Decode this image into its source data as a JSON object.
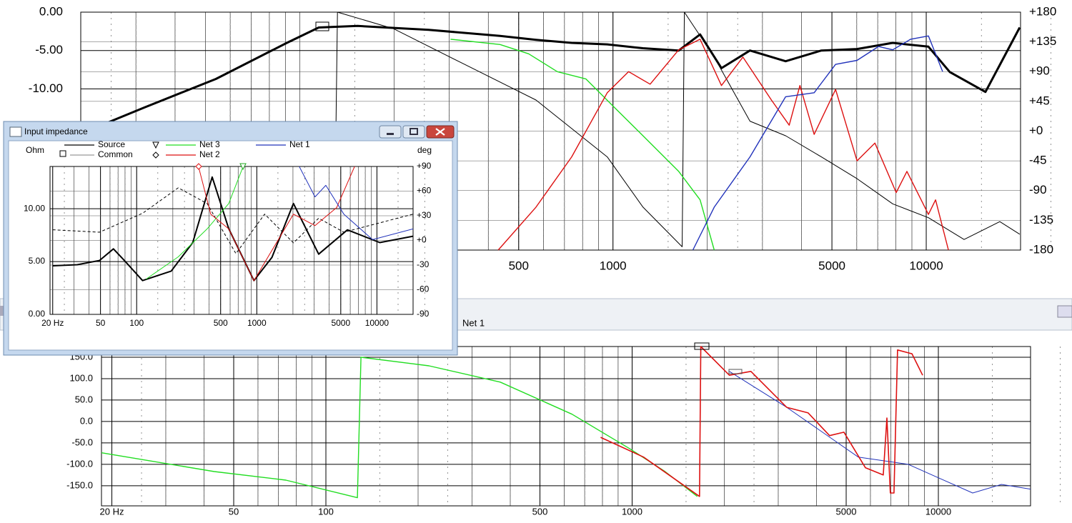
{
  "top_chart": {
    "xlim": [
      20,
      20000
    ],
    "ylim": [
      -31,
      0
    ],
    "y2lim": [
      -180,
      180
    ],
    "log_x": true,
    "xticks": [
      500,
      1000,
      5000,
      10000
    ],
    "yticks": [
      {
        "value": 0,
        "label": "0.00"
      },
      {
        "value": -5,
        "label": "-5.00"
      },
      {
        "value": -10,
        "label": "-10.00"
      }
    ],
    "y2ticks": [
      {
        "value": 180,
        "label": "+180"
      },
      {
        "value": 135,
        "label": "+135"
      },
      {
        "value": 90,
        "label": "+90"
      },
      {
        "value": 45,
        "label": "+45"
      },
      {
        "value": 0,
        "label": "+0"
      },
      -45,
      -90,
      -135,
      -180
    ],
    "series": [
      {
        "color": "#000000",
        "line_width": 3,
        "x": [
          24,
          32,
          54,
          91,
          115,
          153,
          258,
          436,
          568,
          738,
          959,
          1247,
          1621,
          1897,
          2220,
          2737,
          3558,
          4625,
          6012,
          7816,
          10160,
          11890,
          15450,
          19870
        ],
        "values": [
          -14.5,
          -12.4,
          -8.7,
          -4.0,
          -2.0,
          -1.8,
          -2.3,
          -3.1,
          -3.6,
          -4.0,
          -4.2,
          -4.7,
          -5.0,
          -2.9,
          -7.3,
          -5.0,
          -6.4,
          -5.0,
          -4.8,
          -4.0,
          -4.5,
          -7.8,
          -10.4,
          -2.0
        ]
      },
      {
        "color": "#000000",
        "line_width": 1,
        "axis": "y2",
        "x": [
          129,
          132,
          199,
          336,
          568,
          959,
          1247,
          1663,
          1690,
          2105,
          2737,
          3558,
          4625,
          6012,
          7816,
          10160,
          13210,
          17170,
          19870
        ],
        "values": [
          -175,
          180,
          155,
          101,
          47,
          -39,
          -115,
          -175,
          180,
          112,
          15,
          -7,
          -39,
          -72,
          -110,
          -131,
          -164,
          -137,
          -156
        ]
      },
      {
        "color": "#22dd22",
        "line_width": 1.4,
        "axis": "y2",
        "x": [
          303,
          436,
          538,
          664,
          819,
          1010,
          1247,
          1621,
          1897,
          2105
        ],
        "values": [
          139,
          131,
          117,
          90,
          79,
          36,
          -7,
          -61,
          -104,
          -180
        ]
      },
      {
        "color": "#dd1111",
        "line_width": 1.4,
        "axis": "y2",
        "x": [
          430,
          568,
          738,
          959,
          1122,
          1314,
          1621,
          1897,
          2220,
          2598,
          3204,
          3653,
          3952,
          4388,
          5137,
          6012,
          6855,
          8020,
          8677,
          10160,
          10710,
          11770
        ],
        "values": [
          -180,
          -115,
          -39,
          58,
          90,
          71,
          123,
          139,
          69,
          112,
          47,
          9,
          69,
          -5,
          63,
          -45,
          -18,
          -93,
          -61,
          -126,
          -104,
          -180
        ]
      },
      {
        "color": "#2233bb",
        "line_width": 1.4,
        "axis": "y2",
        "x": [
          1799,
          2105,
          2737,
          3558,
          4388,
          5137,
          6012,
          7037,
          7816,
          8914,
          10160,
          11280
        ],
        "values": [
          -180,
          -115,
          -39,
          52,
          58,
          101,
          107,
          128,
          123,
          139,
          144,
          90
        ]
      }
    ]
  },
  "bottom_chart": {
    "title": "Net 1",
    "xlim": [
      18.5,
      20000
    ],
    "ylim": [
      -197,
      175
    ],
    "log_x": true,
    "xticks": [
      {
        "value": 20,
        "label": "20 Hz"
      },
      50,
      100,
      500,
      1000,
      5000,
      10000
    ],
    "yticks": [
      {
        "value": 150,
        "label": "150.0"
      },
      {
        "value": 100,
        "label": "100.0"
      },
      {
        "value": 50,
        "label": "50.0"
      },
      {
        "value": 0,
        "label": "0.0"
      },
      {
        "value": -50,
        "label": "-50.0"
      },
      {
        "value": -100,
        "label": "-100.0"
      },
      {
        "value": -150,
        "label": "-150.0"
      }
    ],
    "series": [
      {
        "color": "#22dd22",
        "line_width": 1.4,
        "x": [
          18.5,
          43.2,
          74,
          126.7,
          130.2,
          217,
          371,
          636,
          979,
          1281,
          1632
        ],
        "values": [
          -73,
          -117,
          -137,
          -178,
          150,
          130,
          92,
          17,
          -63,
          -117,
          -175
        ]
      },
      {
        "color": "#2233bb",
        "line_width": 1,
        "x": [
          2078,
          3197,
          5475,
          7977,
          9892,
          12940,
          16070,
          20000
        ],
        "values": [
          117,
          33,
          -83,
          -100,
          -130,
          -167,
          -147,
          -158
        ]
      },
      {
        "color": "#dd1111",
        "line_width": 1.6,
        "x": [
          789,
          1089,
          1660,
          1676,
          2078,
          2443,
          3197,
          3757,
          4414,
          4918,
          5777,
          6607,
          6792,
          6968,
          7163,
          7359,
          8200,
          8886
        ],
        "values": [
          -37,
          -83,
          -175,
          175,
          108,
          117,
          33,
          20,
          -33,
          -25,
          -108,
          -125,
          8,
          -167,
          -167,
          167,
          158,
          108
        ]
      }
    ]
  },
  "window": {
    "title": "Input impedance",
    "y_label": "Ohm",
    "y2_label": "deg",
    "legend": [
      {
        "name": "Source",
        "color": "#000000"
      },
      {
        "name": "Common",
        "color": "#999999"
      },
      {
        "name": "Net 3",
        "color": "#22dd22"
      },
      {
        "name": "Net 2",
        "color": "#dd1111"
      },
      {
        "name": "Net 1",
        "color": "#2233bb"
      }
    ],
    "xlim": [
      19,
      20000
    ],
    "ylim": [
      0,
      14
    ],
    "y2lim": [
      -90,
      90
    ],
    "log_x": true,
    "xticks": [
      {
        "value": 20,
        "label": "20 Hz"
      },
      50,
      100,
      500,
      1000,
      5000,
      10000
    ],
    "yticks": [
      {
        "value": 0,
        "label": "0.00"
      },
      {
        "value": 5,
        "label": "5.00"
      },
      {
        "value": 10,
        "label": "10.00"
      }
    ],
    "y2ticks": [
      {
        "value": 90,
        "label": "+90"
      },
      {
        "value": 60,
        "label": "+60"
      },
      {
        "value": 30,
        "label": "+30"
      },
      {
        "value": 0,
        "label": "+0"
      },
      -30,
      -60,
      -90
    ],
    "series": [
      {
        "color": "#000000",
        "line_width": 2,
        "x": [
          20,
          32,
          49,
          64,
          79,
          112,
          194,
          293,
          425,
          584,
          946,
          1336,
          2020,
          3274,
          5680,
          10570,
          20000
        ],
        "values": [
          4.6,
          4.7,
          5.1,
          6.2,
          5.1,
          3.2,
          4.1,
          6.8,
          13.0,
          8.1,
          3.2,
          5.4,
          10.5,
          5.7,
          8.0,
          6.8,
          7.4
        ]
      },
      {
        "color": "#000000",
        "line_width": 1,
        "dash": true,
        "axis": "y2",
        "x": [
          20,
          49,
          112,
          222,
          386,
          670,
          1163,
          2020,
          3274,
          5305,
          20000
        ],
        "values": [
          13,
          10,
          33,
          64,
          45,
          -16,
          32,
          -3,
          27,
          10,
          32
        ]
      },
      {
        "color": "#22dd22",
        "line_width": 1,
        "axis": "y2",
        "x": [
          120,
          222,
          386,
          584,
          770
        ],
        "values": [
          -47,
          -20,
          14,
          45,
          90
        ]
      },
      {
        "color": "#dd1111",
        "line_width": 1,
        "axis": "y2",
        "x": [
          327,
          414,
          584,
          946,
          2020,
          3055,
          4624,
          6520
        ],
        "values": [
          90,
          32,
          14,
          -49,
          32,
          18,
          40,
          90
        ]
      },
      {
        "color": "#2233bb",
        "line_width": 1,
        "axis": "y2",
        "x": [
          2256,
          3055,
          3757,
          5305,
          9204,
          20000
        ],
        "values": [
          90,
          53,
          67,
          32,
          1,
          14
        ]
      }
    ]
  }
}
